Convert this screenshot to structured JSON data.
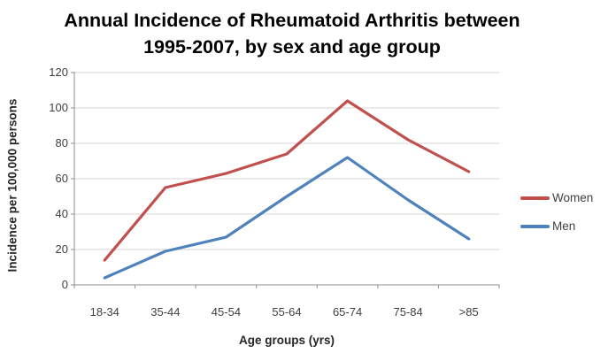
{
  "title": {
    "line1": "Annual Incidence of Rheumatoid Arthritis between",
    "line2": "1995-2007, by sex and age group"
  },
  "chart_data": {
    "type": "line",
    "title": "Annual Incidence of Rheumatoid Arthritis between 1995-2007, by sex and age group",
    "categories": [
      "18-34",
      "35-44",
      "45-54",
      "55-64",
      "65-74",
      "75-84",
      ">85"
    ],
    "series": [
      {
        "name": "Women",
        "color": "#C0504D",
        "values": [
          14,
          55,
          63,
          74,
          104,
          82,
          64
        ]
      },
      {
        "name": "Men",
        "color": "#4F81BD",
        "values": [
          4,
          19,
          27,
          50,
          72,
          48,
          26
        ]
      }
    ],
    "xlabel": "Age groups (yrs)",
    "ylabel": "Incidence per 100,000 persons",
    "ylim": [
      0,
      120
    ],
    "yticks": [
      0,
      20,
      40,
      60,
      80,
      100,
      120
    ],
    "grid": true,
    "legend_position": "right",
    "colors": {
      "gridline": "#D6D6D6",
      "axis": "#8F8F8F",
      "tick_text": "#3F3F3F",
      "title_text": "#000000"
    }
  }
}
